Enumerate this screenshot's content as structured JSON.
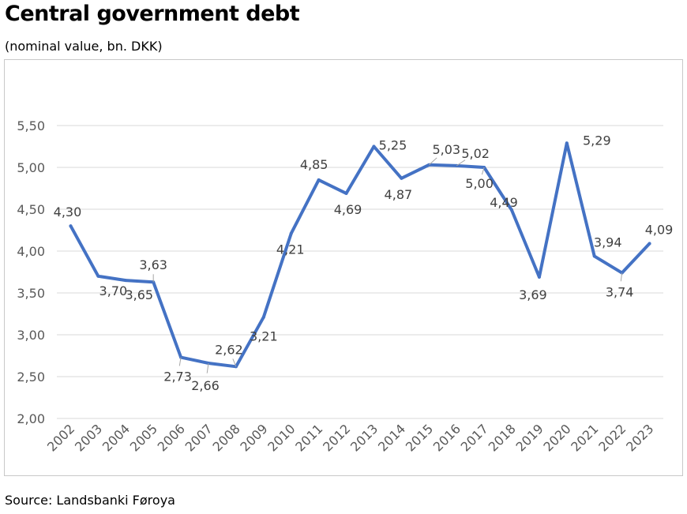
{
  "title": "Central government debt",
  "subtitle": "(nominal value, bn. DKK)",
  "source": "Source: Landsbanki Føroya",
  "chart_data": {
    "type": "line",
    "title": "Central government debt",
    "subtitle": "(nominal value, bn. DKK)",
    "xlabel": "",
    "ylabel": "",
    "ylim": [
      2.0,
      5.5
    ],
    "yticks": [
      "2,00",
      "2,50",
      "3,00",
      "3,50",
      "4,00",
      "4,50",
      "5,00",
      "5,50"
    ],
    "grid": true,
    "legend": "none",
    "categories": [
      "2002",
      "2003",
      "2004",
      "2005",
      "2006",
      "2007",
      "2008",
      "2009",
      "2010",
      "2011",
      "2012",
      "2013",
      "2014",
      "2015",
      "2016",
      "2017",
      "2018",
      "2019",
      "2020",
      "2021",
      "2022",
      "2023"
    ],
    "series": [
      {
        "values": [
          4.3,
          3.7,
          3.65,
          3.63,
          2.73,
          2.66,
          2.62,
          3.21,
          4.21,
          4.85,
          4.69,
          5.25,
          4.87,
          5.03,
          5.02,
          5.0,
          4.49,
          3.69,
          5.29,
          3.94,
          3.74,
          4.09
        ],
        "labels": [
          "4,30",
          "3,70",
          "3,65",
          "3,63",
          "2,73",
          "2,66",
          "2,62",
          "3,21",
          "4,21",
          "4,85",
          "4,69",
          "5,25",
          "4,87",
          "5,03",
          "5,02",
          "5,00",
          "4,49",
          "3,69",
          "5,29",
          "3,94",
          "3,74",
          "4,09"
        ],
        "color": "#4472C4"
      }
    ],
    "colors": {
      "line": "#4472C4",
      "grid": "#d9d9d9",
      "leader": "#a6a6a6",
      "axis_text": "#595959",
      "label_text": "#404040"
    }
  }
}
